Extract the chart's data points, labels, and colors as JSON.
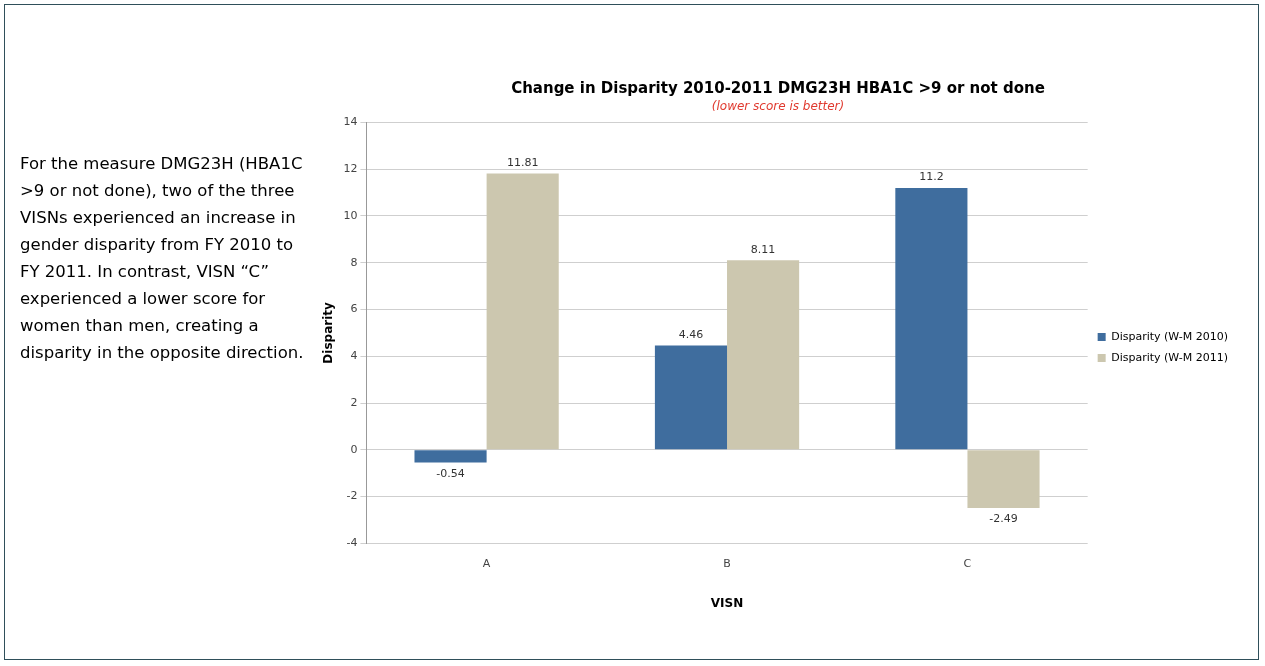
{
  "chart_data": {
    "type": "bar",
    "title": "Change in Disparity 2010-2011 DMG23H HBA1C >9 or not done",
    "subtitle": "(lower score is better)",
    "xlabel": "VISN",
    "ylabel": "Disparity",
    "categories": [
      "A",
      "B",
      "C"
    ],
    "series": [
      {
        "name": "Disparity (W-M 2010)",
        "color": "#3f6d9e",
        "values": [
          -0.54,
          4.46,
          11.2
        ]
      },
      {
        "name": "Disparity (W-M 2011)",
        "color": "#ccc7af",
        "values": [
          11.81,
          8.11,
          -2.49
        ]
      }
    ],
    "ylim": [
      -4,
      14
    ],
    "yticks": [
      -4,
      -2,
      0,
      2,
      4,
      6,
      8,
      10,
      12,
      14
    ],
    "grid": "y",
    "legend": "right",
    "data_labels": true,
    "annotations": [
      "For the measure DMG23H (HBA1C >9 or not done), two of the three VISNs experienced an increase in gender disparity from FY 2010 to FY 2011. In contrast, VISN “C” experienced a lower score for women than men, creating a disparity in the opposite direction."
    ]
  }
}
